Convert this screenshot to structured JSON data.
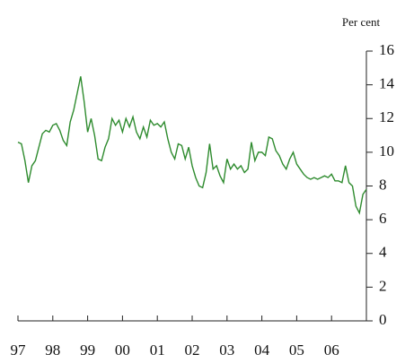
{
  "chart_data": {
    "type": "line",
    "y_label": "Per cent",
    "x": [
      1997.0,
      1997.1,
      1997.2,
      1997.3,
      1997.4,
      1997.5,
      1997.6,
      1997.7,
      1997.8,
      1997.9,
      1998.0,
      1998.1,
      1998.2,
      1998.3,
      1998.4,
      1998.5,
      1998.6,
      1998.7,
      1998.8,
      1998.9,
      1999.0,
      1999.1,
      1999.2,
      1999.3,
      1999.4,
      1999.5,
      1999.6,
      1999.7,
      1999.8,
      1999.9,
      2000.0,
      2000.1,
      2000.2,
      2000.3,
      2000.4,
      2000.5,
      2000.6,
      2000.7,
      2000.8,
      2000.9,
      2001.0,
      2001.1,
      2001.2,
      2001.3,
      2001.4,
      2001.5,
      2001.6,
      2001.7,
      2001.8,
      2001.9,
      2002.0,
      2002.1,
      2002.2,
      2002.3,
      2002.4,
      2002.5,
      2002.6,
      2002.7,
      2002.8,
      2002.9,
      2003.0,
      2003.1,
      2003.2,
      2003.3,
      2003.4,
      2003.5,
      2003.6,
      2003.7,
      2003.8,
      2003.9,
      2004.0,
      2004.1,
      2004.2,
      2004.3,
      2004.4,
      2004.5,
      2004.6,
      2004.7,
      2004.8,
      2004.9,
      2005.0,
      2005.1,
      2005.2,
      2005.3,
      2005.4,
      2005.5,
      2005.6,
      2005.7,
      2005.8,
      2005.9,
      2006.0,
      2006.1,
      2006.2,
      2006.3,
      2006.4,
      2006.5,
      2006.6,
      2006.7,
      2006.8,
      2006.9,
      2007.0
    ],
    "series": [
      {
        "name": "Per cent",
        "color": "#2e8b2e",
        "values": [
          10.6,
          10.5,
          9.5,
          8.2,
          9.2,
          9.5,
          10.3,
          11.1,
          11.3,
          11.2,
          11.6,
          11.7,
          11.3,
          10.7,
          10.4,
          11.8,
          12.5,
          13.5,
          14.5,
          13.0,
          11.2,
          12.0,
          11.0,
          9.6,
          9.5,
          10.3,
          10.8,
          12.0,
          11.6,
          11.9,
          11.2,
          12.0,
          11.5,
          12.1,
          11.2,
          10.8,
          11.5,
          10.9,
          11.9,
          11.6,
          11.7,
          11.5,
          11.8,
          10.8,
          10.0,
          9.6,
          10.5,
          10.4,
          9.6,
          10.3,
          9.2,
          8.5,
          8.0,
          7.9,
          8.8,
          10.5,
          9.0,
          9.2,
          8.6,
          8.2,
          9.6,
          9.0,
          9.3,
          9.0,
          9.2,
          8.8,
          9.0,
          10.6,
          9.5,
          10.0,
          10.0,
          9.8,
          10.9,
          10.8,
          10.1,
          9.8,
          9.3,
          9.0,
          9.6,
          10.0,
          9.3,
          9.0,
          8.7,
          8.5,
          8.4,
          8.5,
          8.4,
          8.5,
          8.6,
          8.5,
          8.7,
          8.3,
          8.3,
          8.2,
          9.2,
          8.2,
          8.0,
          6.8,
          6.4,
          7.5,
          7.8
        ]
      }
    ],
    "xlim": [
      1997,
      2007
    ],
    "xticks": [
      {
        "value": 1997,
        "label": "97"
      },
      {
        "value": 1998,
        "label": "98"
      },
      {
        "value": 1999,
        "label": "99"
      },
      {
        "value": 2000,
        "label": "00"
      },
      {
        "value": 2001,
        "label": "01"
      },
      {
        "value": 2002,
        "label": "02"
      },
      {
        "value": 2003,
        "label": "03"
      },
      {
        "value": 2004,
        "label": "04"
      },
      {
        "value": 2005,
        "label": "05"
      },
      {
        "value": 2006,
        "label": "06"
      }
    ],
    "ylim": [
      0,
      16
    ],
    "yticks": [
      0,
      2,
      4,
      6,
      8,
      10,
      12,
      14,
      16
    ],
    "y_axis_side": "right",
    "grid": false
  }
}
